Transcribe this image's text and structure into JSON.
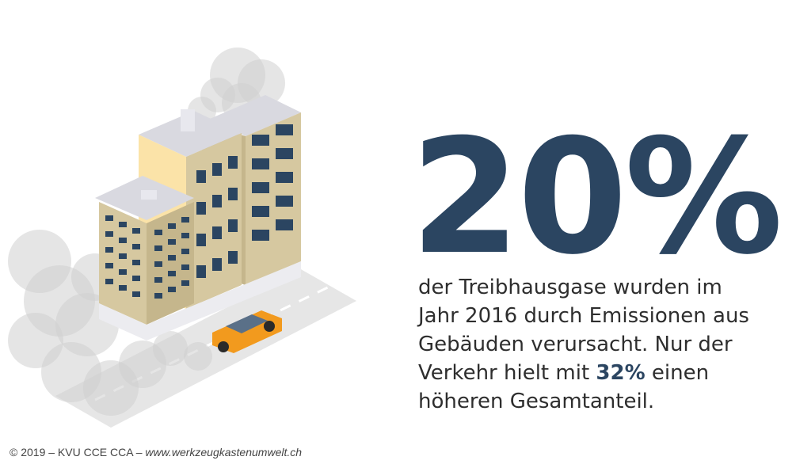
{
  "headline": {
    "value": "20%"
  },
  "body": {
    "line1": "der Treibhausgase wurden im",
    "line2": "Jahr 2016 durch Emissionen aus",
    "line3": "Gebäuden verursacht. Nur der",
    "line4_pre": "Verkehr hielt mit ",
    "line4_highlight": "32%",
    "line4_post": " einen",
    "line5": "höheren Gesamtanteil."
  },
  "footer": {
    "copyright": "© 2019 – KVU CCE CCA – ",
    "url": "www.werkzeugkastenumwelt.ch"
  },
  "colors": {
    "accent": "#2b4561",
    "car": "#f29a1e",
    "smoke": "#cfcfcf",
    "facade_beige": "#d6c8a0",
    "facade_yellow": "#fbe3a8"
  }
}
